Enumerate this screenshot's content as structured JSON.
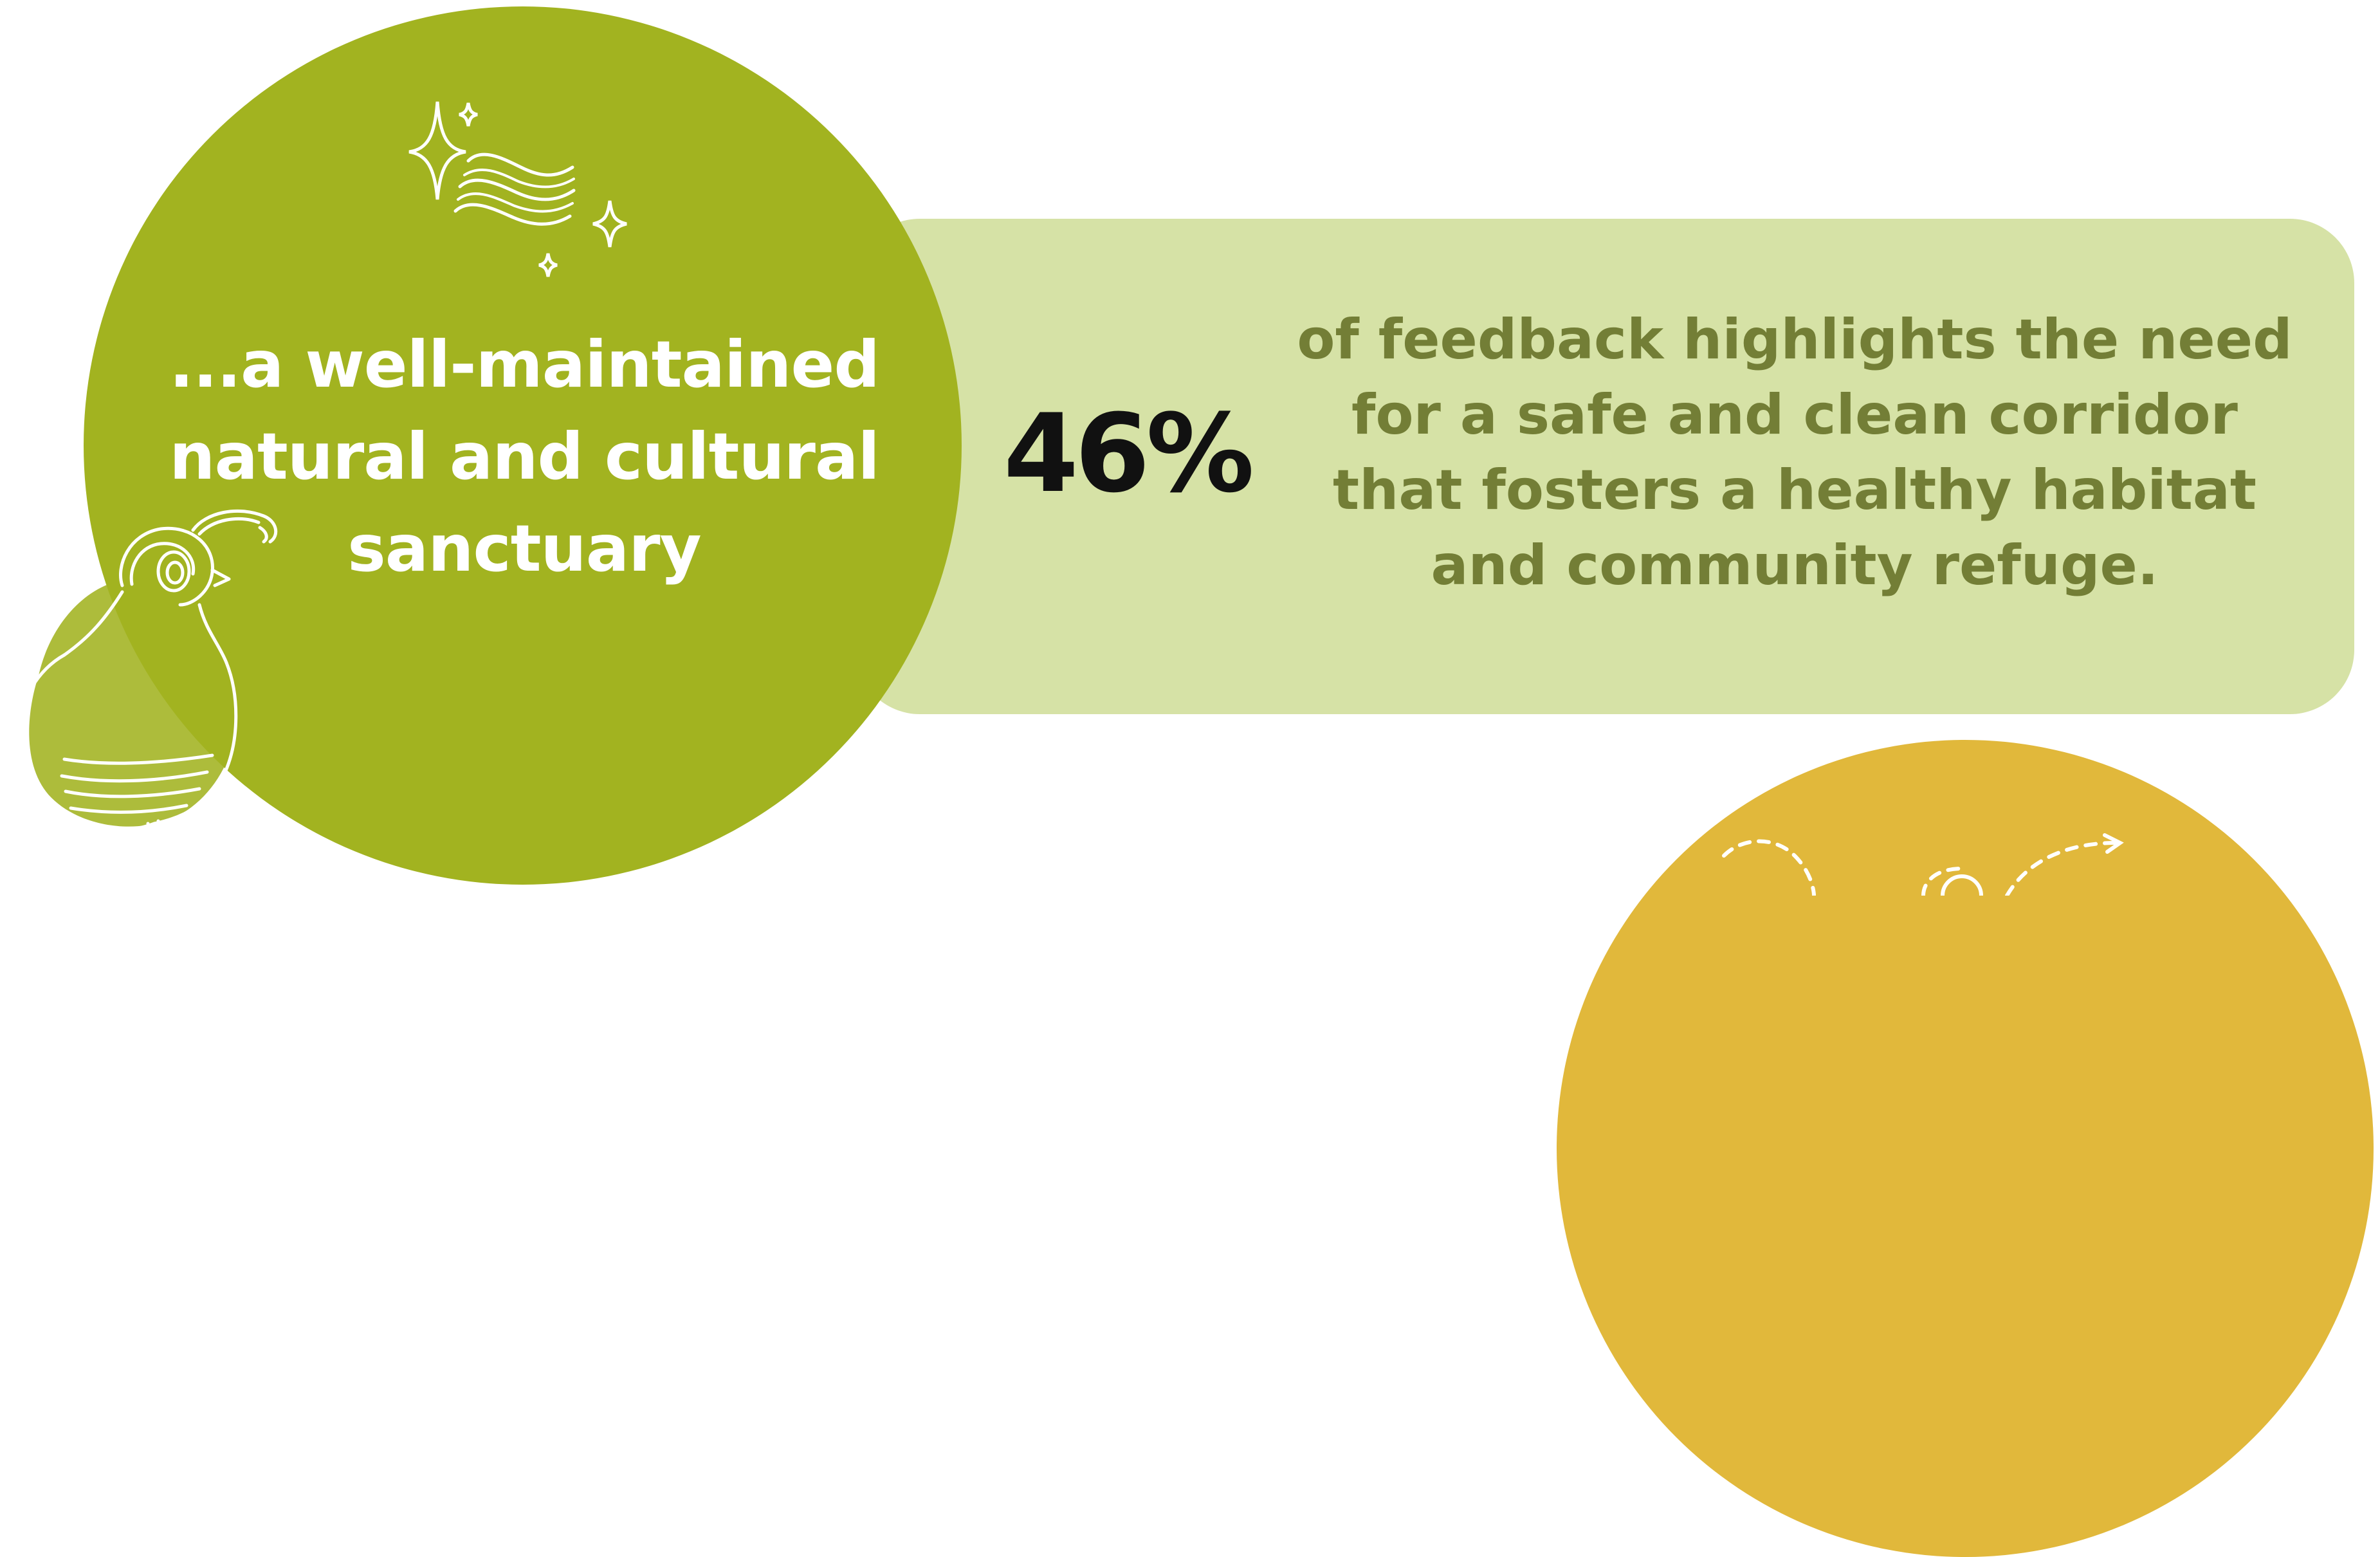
{
  "feature": {
    "title": "...a well-maintained natural and cultural sanctuary",
    "icon": "sparkle-wind-icon",
    "color": "#a2b320"
  },
  "stat": {
    "value": "46%",
    "description": "of feedback highlights the need for a safe and clean corridor that fosters a healthy habitat and community refuge.",
    "panel_color": "#d6e2a6",
    "text_color": "#737e36"
  },
  "illustration": {
    "icon": "quail-icon"
  },
  "next_section": {
    "color": "#e1b83b",
    "icon": "dashed-path-icon"
  }
}
